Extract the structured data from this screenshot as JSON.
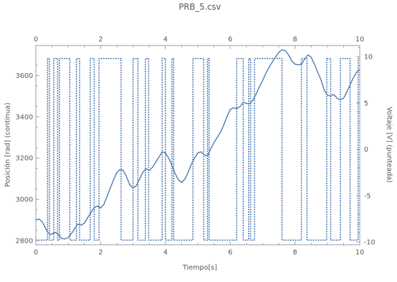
{
  "chart_data": {
    "type": "line",
    "title": "PRB_5.csv",
    "xlabel": "Tiempo[s]",
    "ylabel_left": "Posición [rad] (continua)",
    "ylabel_right": "Voltaje [V] (punteada)",
    "xlim": [
      0,
      10
    ],
    "ylim_left": [
      2780,
      3745
    ],
    "ylim_right": [
      -10.3,
      11.2
    ],
    "x_ticks": [
      "0",
      "2",
      "4",
      "6",
      "8",
      "10"
    ],
    "x_tick_values": [
      0,
      2,
      4,
      6,
      8,
      10
    ],
    "y_left_ticks": [
      "2800",
      "3000",
      "3200",
      "3400",
      "3600"
    ],
    "y_left_tick_values": [
      2800,
      3000,
      3200,
      3400,
      3600
    ],
    "y_right_ticks": [
      "-10",
      "-5",
      "0",
      "5",
      "10"
    ],
    "y_right_tick_values": [
      -10,
      -5,
      0,
      5,
      10
    ],
    "grid": false,
    "series": [
      {
        "axis": "left",
        "style": "solid",
        "color": "#4a78b0",
        "x": [
          0,
          0.1,
          0.2,
          0.3,
          0.35,
          0.45,
          0.55,
          0.6,
          0.7,
          0.8,
          0.9,
          1.0,
          1.15,
          1.25,
          1.3,
          1.4,
          1.5,
          1.6,
          1.7,
          1.8,
          1.9,
          2.0,
          2.1,
          2.2,
          2.3,
          2.4,
          2.5,
          2.6,
          2.7,
          2.8,
          2.9,
          3.0,
          3.1,
          3.2,
          3.3,
          3.4,
          3.5,
          3.6,
          3.7,
          3.8,
          3.9,
          4.0,
          4.1,
          4.2,
          4.3,
          4.4,
          4.5,
          4.6,
          4.7,
          4.8,
          4.9,
          5.0,
          5.1,
          5.2,
          5.3,
          5.4,
          5.5,
          5.6,
          5.7,
          5.8,
          5.9,
          6.0,
          6.1,
          6.2,
          6.3,
          6.4,
          6.5,
          6.6,
          6.7,
          6.8,
          6.9,
          7.0,
          7.1,
          7.2,
          7.3,
          7.4,
          7.5,
          7.6,
          7.7,
          7.8,
          7.9,
          8.0,
          8.1,
          8.2,
          8.3,
          8.4,
          8.5,
          8.6,
          8.7,
          8.8,
          8.9,
          9.0,
          9.1,
          9.2,
          9.3,
          9.4,
          9.5,
          9.6,
          9.7,
          9.8,
          9.9,
          10.0
        ],
        "y": [
          2900,
          2905,
          2890,
          2860,
          2843,
          2830,
          2836,
          2840,
          2830,
          2810,
          2808,
          2815,
          2845,
          2872,
          2880,
          2875,
          2885,
          2912,
          2935,
          2960,
          2968,
          2958,
          2975,
          3015,
          3055,
          3095,
          3130,
          3145,
          3140,
          3110,
          3070,
          3055,
          3065,
          3098,
          3130,
          3148,
          3140,
          3155,
          3180,
          3205,
          3230,
          3225,
          3200,
          3165,
          3125,
          3095,
          3082,
          3098,
          3130,
          3170,
          3200,
          3225,
          3230,
          3215,
          3210,
          3245,
          3275,
          3300,
          3325,
          3360,
          3400,
          3435,
          3443,
          3440,
          3448,
          3470,
          3465,
          3462,
          3480,
          3510,
          3545,
          3575,
          3610,
          3640,
          3665,
          3690,
          3712,
          3725,
          3720,
          3700,
          3670,
          3655,
          3652,
          3655,
          3680,
          3700,
          3688,
          3655,
          3615,
          3580,
          3530,
          3505,
          3500,
          3508,
          3490,
          3482,
          3490,
          3520,
          3555,
          3588,
          3615,
          3630
        ]
      },
      {
        "axis": "right",
        "style": "dotted",
        "color": "#4a78b0",
        "x": [
          0,
          0.36,
          0.36,
          0.42,
          0.42,
          0.55,
          0.55,
          0.67,
          0.67,
          0.73,
          0.73,
          1.05,
          1.05,
          1.25,
          1.25,
          1.35,
          1.35,
          1.68,
          1.68,
          1.8,
          1.8,
          1.95,
          1.95,
          2.63,
          2.63,
          3.0,
          3.0,
          3.15,
          3.15,
          3.38,
          3.38,
          3.48,
          3.48,
          3.9,
          3.9,
          4.0,
          4.0,
          4.2,
          4.2,
          4.25,
          4.25,
          4.85,
          4.85,
          5.18,
          5.18,
          5.3,
          5.3,
          5.35,
          5.35,
          6.2,
          6.2,
          6.4,
          6.4,
          6.57,
          6.57,
          6.63,
          6.63,
          6.75,
          6.75,
          7.6,
          7.6,
          8.2,
          8.2,
          8.37,
          8.37,
          8.98,
          8.98,
          9.1,
          9.1,
          9.4,
          9.4,
          9.7,
          9.7,
          9.95,
          9.95,
          10.0
        ],
        "y": [
          -9.8,
          -9.8,
          9.8,
          9.8,
          -9.8,
          -9.8,
          9.8,
          9.8,
          -9.8,
          -9.8,
          9.8,
          9.8,
          -9.8,
          -9.8,
          9.8,
          9.8,
          -9.8,
          -9.8,
          9.8,
          9.8,
          -9.8,
          -9.8,
          9.8,
          9.8,
          -9.8,
          -9.8,
          9.8,
          9.8,
          -9.8,
          -9.8,
          9.8,
          9.8,
          -9.8,
          -9.8,
          9.8,
          9.8,
          -9.8,
          -9.8,
          9.8,
          9.8,
          -9.8,
          -9.8,
          9.8,
          9.8,
          -9.8,
          -9.8,
          9.8,
          9.8,
          -9.8,
          -9.8,
          9.8,
          9.8,
          -9.8,
          -9.8,
          9.8,
          9.8,
          -9.8,
          -9.8,
          9.8,
          9.8,
          -9.8,
          -9.8,
          9.8,
          9.8,
          -9.8,
          -9.8,
          9.8,
          9.8,
          -9.8,
          -9.8,
          9.8,
          9.8,
          -9.8,
          -9.8,
          9.8,
          9.8
        ]
      }
    ]
  }
}
